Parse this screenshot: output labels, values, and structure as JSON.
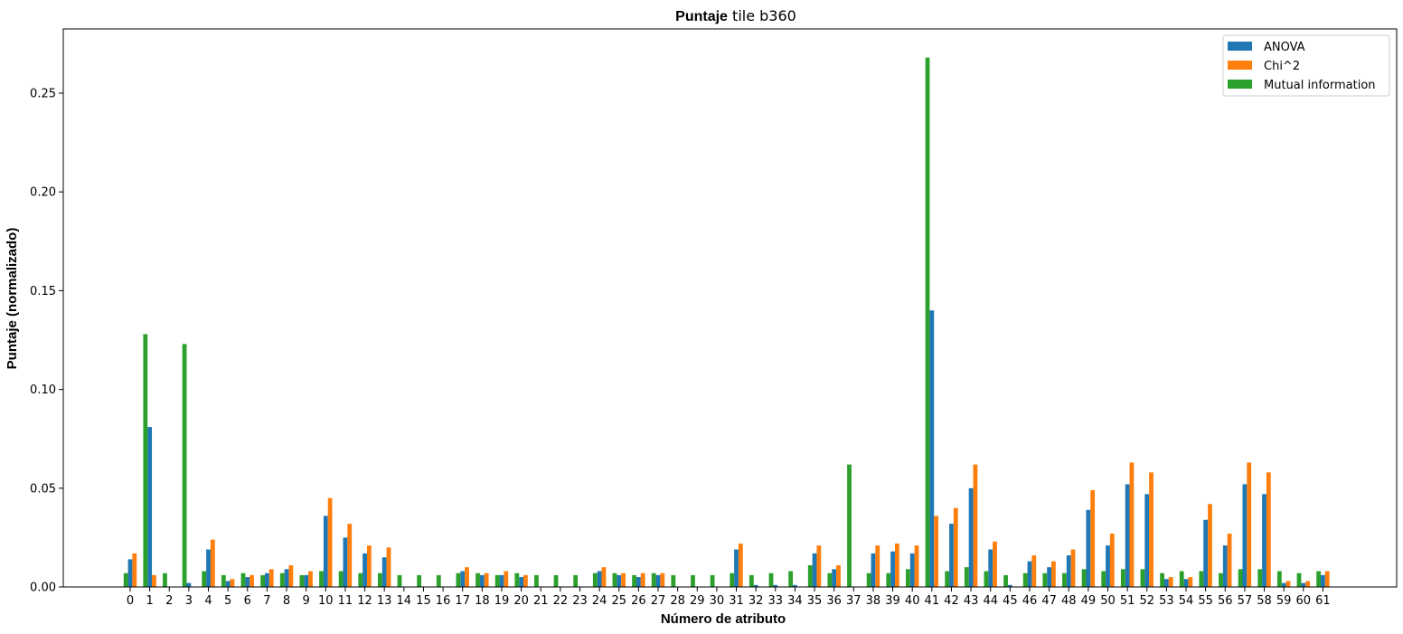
{
  "chart_data": {
    "type": "bar",
    "title_bold": "Puntaje",
    "title_rest": " tile b360",
    "xlabel": "Número de atributo",
    "ylabel": "Puntaje (normalizado)",
    "ylim": [
      0,
      0.2825
    ],
    "yticks": [
      0.0,
      0.05,
      0.1,
      0.15,
      0.2,
      0.25
    ],
    "ytick_labels": [
      "0.00",
      "0.05",
      "0.10",
      "0.15",
      "0.20",
      "0.25"
    ],
    "legend_position": "top-right",
    "grid": false,
    "categories": [
      "0",
      "1",
      "2",
      "3",
      "4",
      "5",
      "6",
      "7",
      "8",
      "9",
      "10",
      "11",
      "12",
      "13",
      "14",
      "15",
      "16",
      "17",
      "18",
      "19",
      "20",
      "21",
      "22",
      "23",
      "24",
      "25",
      "26",
      "27",
      "28",
      "29",
      "30",
      "31",
      "32",
      "33",
      "34",
      "35",
      "36",
      "37",
      "38",
      "39",
      "40",
      "41",
      "42",
      "43",
      "44",
      "45",
      "46",
      "47",
      "48",
      "49",
      "50",
      "51",
      "52",
      "53",
      "54",
      "55",
      "56",
      "57",
      "58",
      "59",
      "60",
      "61"
    ],
    "series": [
      {
        "name": "ANOVA",
        "color": "#1f77b4",
        "values": [
          0.014,
          0.081,
          0.0,
          0.002,
          0.019,
          0.003,
          0.005,
          0.007,
          0.009,
          0.006,
          0.036,
          0.025,
          0.017,
          0.015,
          0.0,
          0.0,
          0.0,
          0.008,
          0.006,
          0.006,
          0.005,
          0.0,
          0.0,
          0.0,
          0.008,
          0.006,
          0.005,
          0.006,
          0.0,
          0.0,
          0.0,
          0.019,
          0.001,
          0.001,
          0.001,
          0.017,
          0.009,
          0.0,
          0.017,
          0.018,
          0.017,
          0.14,
          0.032,
          0.05,
          0.019,
          0.001,
          0.013,
          0.01,
          0.016,
          0.039,
          0.021,
          0.052,
          0.047,
          0.004,
          0.004,
          0.034,
          0.021,
          0.052,
          0.047,
          0.002,
          0.002,
          0.006
        ]
      },
      {
        "name": "Chi^2",
        "color": "#ff7f0e",
        "values": [
          0.017,
          0.006,
          0.0,
          0.0,
          0.024,
          0.004,
          0.006,
          0.009,
          0.011,
          0.008,
          0.045,
          0.032,
          0.021,
          0.02,
          0.0,
          0.0,
          0.0,
          0.01,
          0.007,
          0.008,
          0.006,
          0.0,
          0.0,
          0.0,
          0.01,
          0.007,
          0.007,
          0.007,
          0.0,
          0.0,
          0.0,
          0.022,
          0.0,
          0.0,
          0.0,
          0.021,
          0.011,
          0.0,
          0.021,
          0.022,
          0.021,
          0.036,
          0.04,
          0.062,
          0.023,
          0.0,
          0.016,
          0.013,
          0.019,
          0.049,
          0.027,
          0.063,
          0.058,
          0.005,
          0.005,
          0.042,
          0.027,
          0.063,
          0.058,
          0.003,
          0.003,
          0.008
        ]
      },
      {
        "name": "Mutual information",
        "color": "#2ca02c",
        "values": [
          0.007,
          0.128,
          0.007,
          0.123,
          0.008,
          0.006,
          0.007,
          0.006,
          0.007,
          0.006,
          0.008,
          0.008,
          0.007,
          0.007,
          0.006,
          0.006,
          0.006,
          0.007,
          0.007,
          0.006,
          0.007,
          0.006,
          0.006,
          0.006,
          0.007,
          0.007,
          0.006,
          0.007,
          0.006,
          0.006,
          0.006,
          0.007,
          0.006,
          0.007,
          0.008,
          0.011,
          0.007,
          0.062,
          0.007,
          0.007,
          0.009,
          0.268,
          0.008,
          0.01,
          0.008,
          0.006,
          0.007,
          0.007,
          0.007,
          0.009,
          0.008,
          0.009,
          0.009,
          0.007,
          0.008,
          0.008,
          0.007,
          0.009,
          0.009,
          0.008,
          0.007,
          0.008
        ]
      }
    ]
  }
}
